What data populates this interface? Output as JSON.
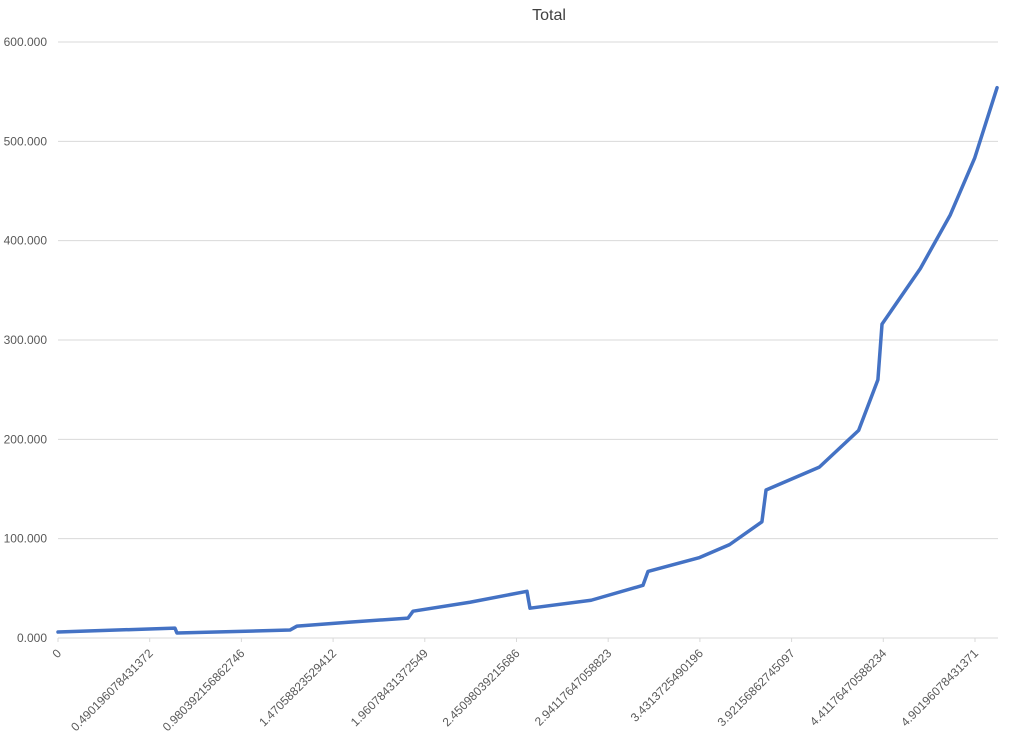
{
  "chart_data": {
    "type": "line",
    "title": "Total",
    "x": [
      0,
      0.625,
      0.636,
      1.24,
      1.278,
      1.561,
      1.871,
      1.898,
      2.202,
      2.507,
      2.523,
      2.85,
      3.127,
      3.154,
      3.43,
      3.59,
      3.763,
      3.785,
      4.07,
      4.28,
      4.383,
      4.405,
      4.61,
      4.77,
      4.9,
      5.02
    ],
    "series": [
      {
        "color": "#4472c4",
        "values": [
          6,
          10,
          5,
          8,
          12,
          16,
          20,
          27,
          36,
          47,
          30,
          38,
          53,
          67,
          81,
          94,
          117,
          149,
          172,
          209,
          260,
          316,
          372,
          426,
          483,
          554
        ]
      }
    ],
    "xlim": [
      0,
      5.025
    ],
    "xticks": [
      0,
      0.490196078431372,
      0.980392156862746,
      1.47058823529412,
      1.96078431372549,
      2.45098039215686,
      2.94117647058823,
      3.4313725490196,
      3.92156862745097,
      4.41176470588234,
      4.90196078431371
    ],
    "ylim": [
      0,
      600
    ],
    "yticks": [
      {
        "value": 0,
        "label": "0.000"
      },
      {
        "value": 100,
        "label": "100.000"
      },
      {
        "value": 200,
        "label": "200.000"
      },
      {
        "value": 300,
        "label": "300.000"
      },
      {
        "value": 400,
        "label": "400.000"
      },
      {
        "value": 500,
        "label": "500.000"
      },
      {
        "value": 600,
        "label": "600.000"
      }
    ],
    "grid": true
  }
}
